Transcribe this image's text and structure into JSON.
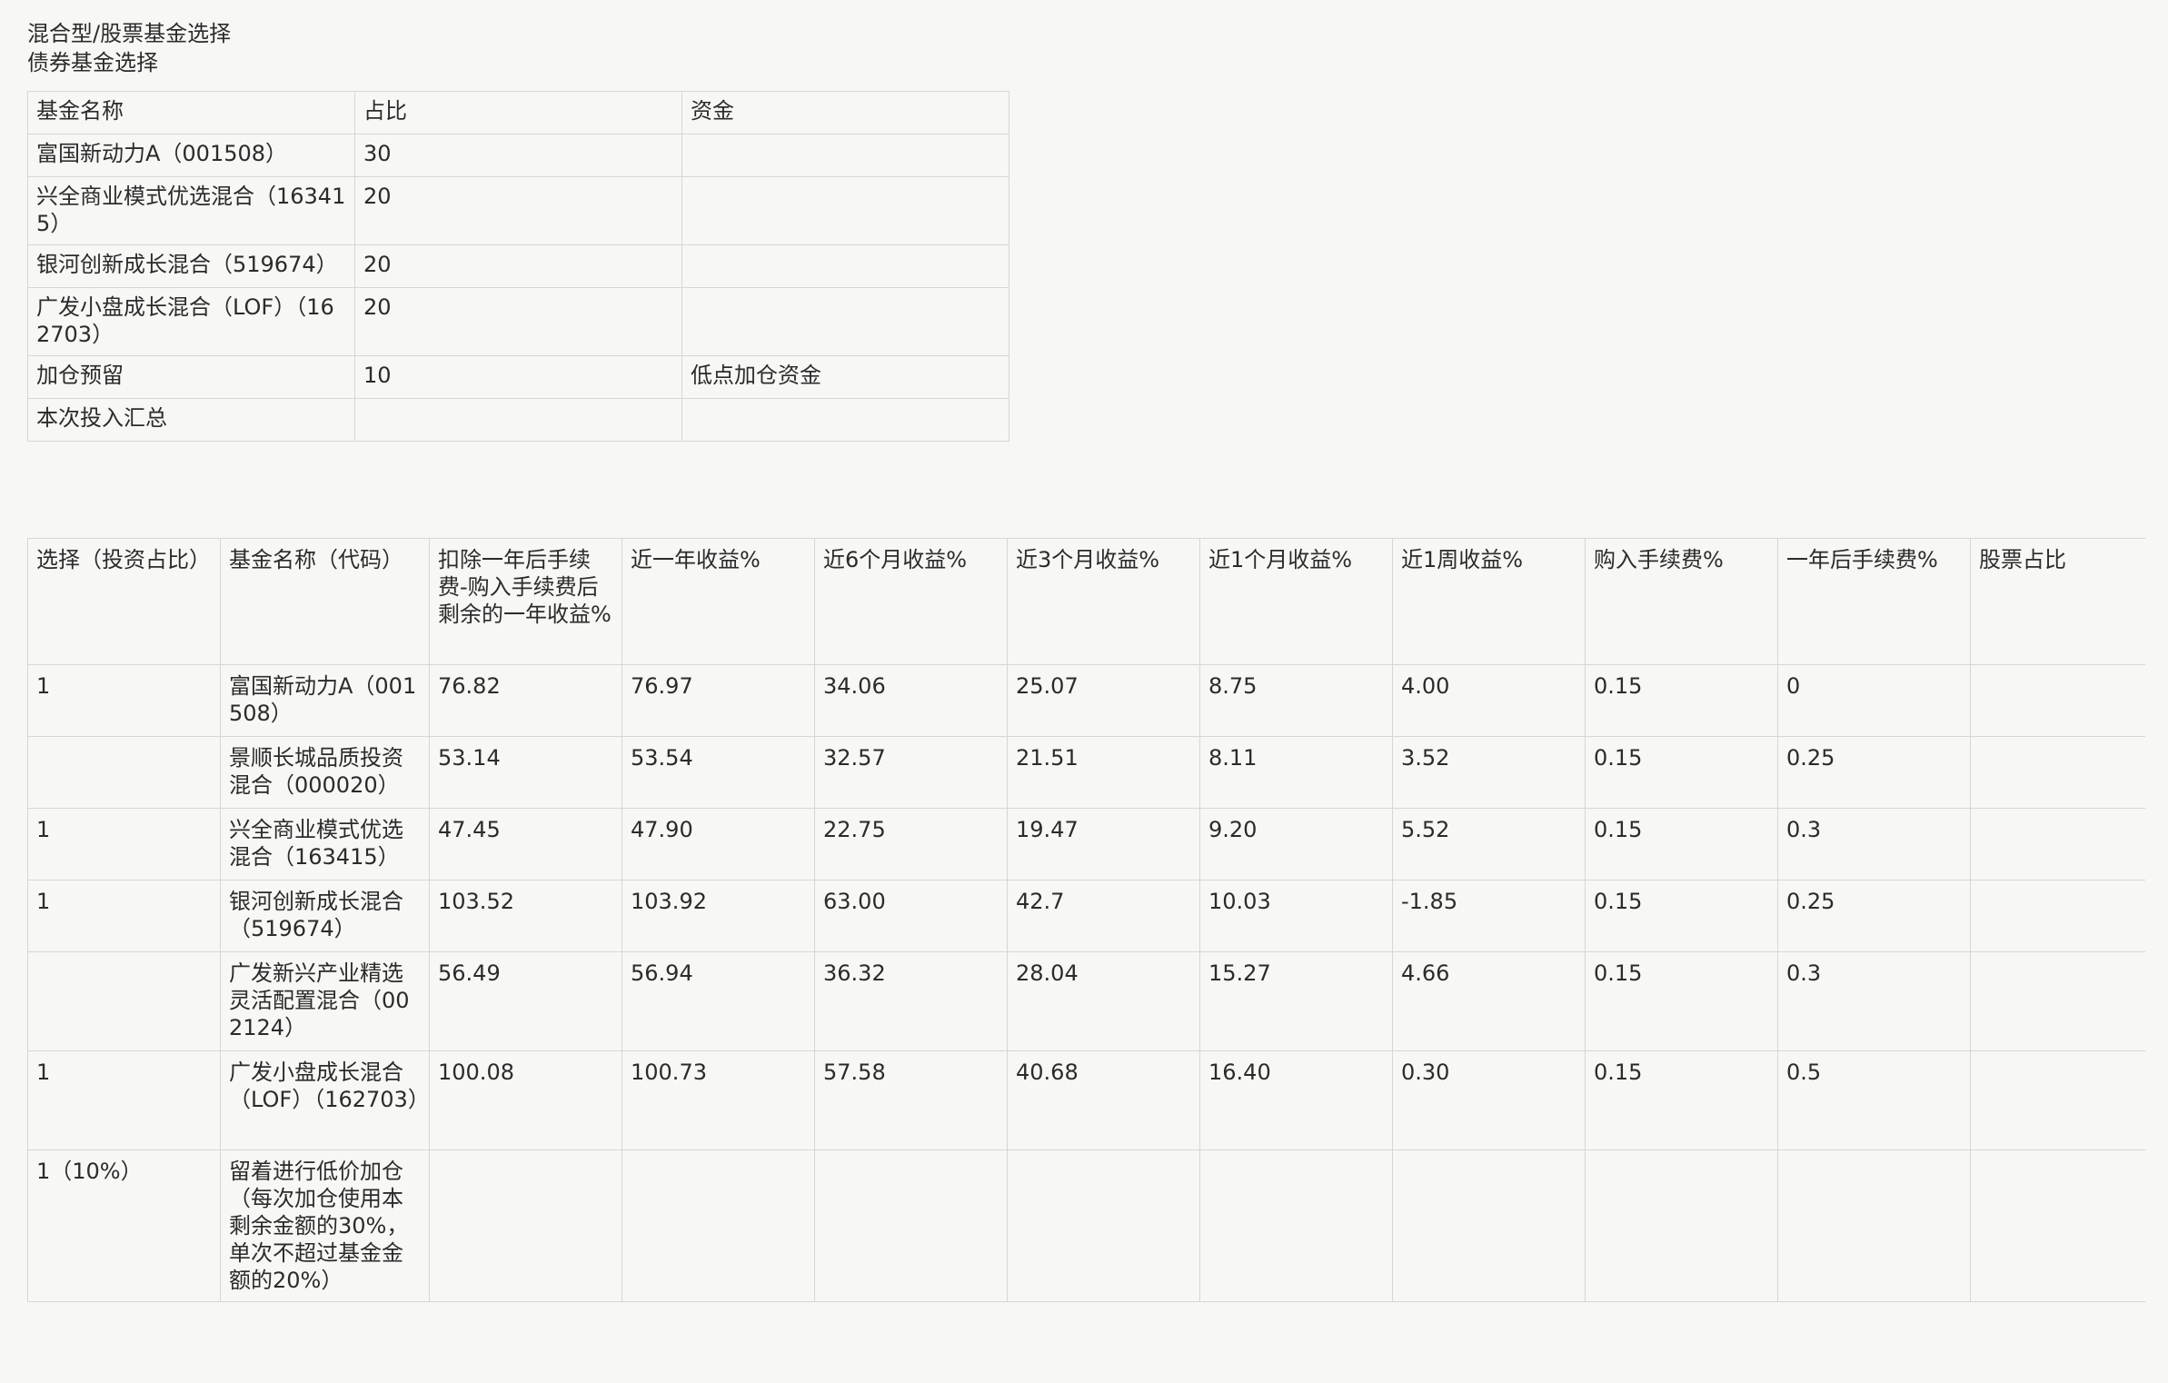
{
  "headings": {
    "line1": "混合型/股票基金选择",
    "line2": "债券基金选择"
  },
  "allocation_table": {
    "headers": [
      "基金名称",
      "占比",
      "资金"
    ],
    "rows": [
      [
        "富国新动力A（001508）",
        "30",
        ""
      ],
      [
        "兴全商业模式优选混合（163415）",
        "20",
        ""
      ],
      [
        "银河创新成长混合（519674）",
        "20",
        ""
      ],
      [
        "广发小盘成长混合（LOF）（162703）",
        "20",
        ""
      ],
      [
        "加仓预留",
        "10",
        "低点加仓资金"
      ],
      [
        "本次投入汇总",
        "",
        ""
      ]
    ]
  },
  "fund_table": {
    "headers": [
      "选择（投资占比）",
      "基金名称（代码）",
      "扣除一年后手续费-购入手续费后剩余的一年收益%",
      "近一年收益%",
      "近6个月收益%",
      "近3个月收益%",
      "近1个月收益%",
      "近1周收益%",
      "购入手续费%",
      "一年后手续费%",
      "股票占比"
    ],
    "rows": [
      [
        "1",
        "富国新动力A（001508）",
        "76.82",
        "76.97",
        "34.06",
        "25.07",
        "8.75",
        "4.00",
        "0.15",
        "0",
        ""
      ],
      [
        "",
        "景顺长城品质投资混合（000020）",
        "53.14",
        "53.54",
        "32.57",
        "21.51",
        "8.11",
        "3.52",
        "0.15",
        "0.25",
        ""
      ],
      [
        "1",
        "兴全商业模式优选混合（163415）",
        "47.45",
        "47.90",
        "22.75",
        "19.47",
        "9.20",
        "5.52",
        "0.15",
        "0.3",
        ""
      ],
      [
        "1",
        "银河创新成长混合（519674）",
        "103.52",
        "103.92",
        "63.00",
        "42.7",
        "10.03",
        "-1.85",
        "0.15",
        "0.25",
        ""
      ],
      [
        "",
        "广发新兴产业精选灵活配置混合（002124）",
        "56.49",
        "56.94",
        "36.32",
        "28.04",
        "15.27",
        "4.66",
        "0.15",
        "0.3",
        ""
      ],
      [
        "1",
        "广发小盘成长混合（LOF）（162703）",
        "100.08",
        "100.73",
        "57.58",
        "40.68",
        "16.40",
        "0.30",
        "0.15",
        "0.5",
        ""
      ],
      [
        "1（10%）",
        "留着进行低价加仓（每次加仓使用本剩余金额的30%，单次不超过基金金额的20%）",
        "",
        "",
        "",
        "",
        "",
        "",
        "",
        "",
        ""
      ]
    ]
  }
}
